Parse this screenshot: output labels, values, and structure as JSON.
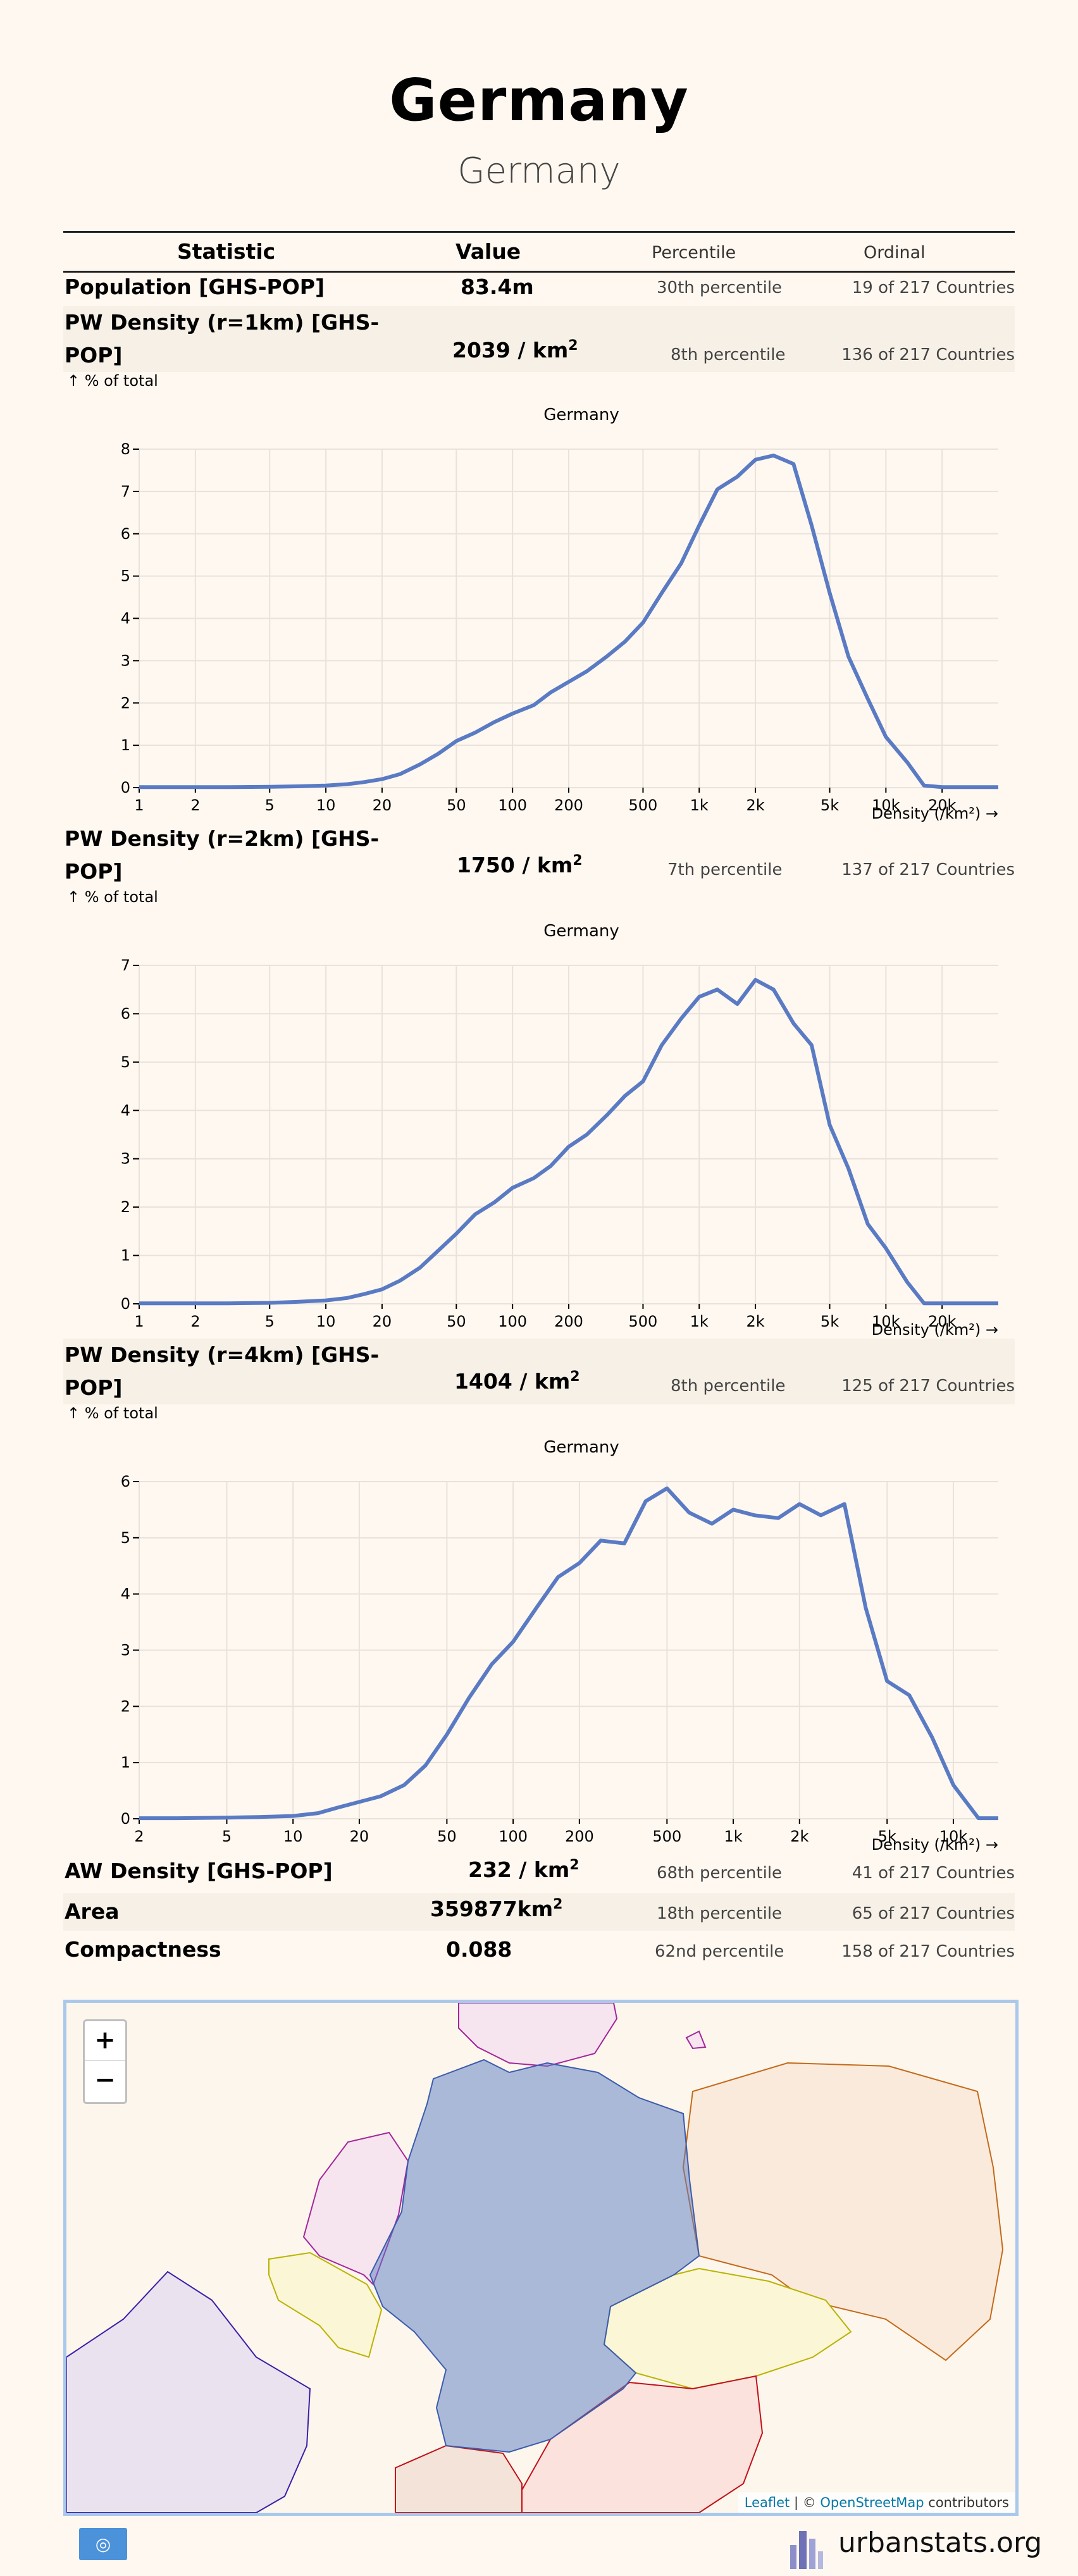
{
  "title": "Germany",
  "subtitle": "Germany",
  "table_header": {
    "statistic": "Statistic",
    "value": "Value",
    "percentile": "Percentile",
    "ordinal": "Ordinal"
  },
  "rows": {
    "population": {
      "name": "Population [GHS-POP]",
      "value": "83.4",
      "unit": "m",
      "percentile": "30th percentile",
      "ordinal": "19 of 217 Countries"
    },
    "pw1": {
      "name_line1": "PW Density (r=1km) [GHS-",
      "name_line2": "POP]",
      "value": "2039",
      "unit": "/ km",
      "unit_sup": "2",
      "percentile": "8th percentile",
      "ordinal": "136 of 217 Countries"
    },
    "pw2": {
      "name_line1": "PW Density (r=2km) [GHS-",
      "name_line2": "POP]",
      "value": "1750",
      "unit": "/ km",
      "unit_sup": "2",
      "percentile": "7th percentile",
      "ordinal": "137 of 217 Countries"
    },
    "pw4": {
      "name_line1": "PW Density (r=4km) [GHS-",
      "name_line2": "POP]",
      "value": "1404",
      "unit": "/ km",
      "unit_sup": "2",
      "percentile": "8th percentile",
      "ordinal": "125 of 217 Countries"
    },
    "aw": {
      "name": "AW Density [GHS-POP]",
      "value": "232",
      "unit": "/ km",
      "unit_sup": "2",
      "percentile": "68th percentile",
      "ordinal": "41 of 217 Countries"
    },
    "area": {
      "name": "Area",
      "value": "359877",
      "unit": "km",
      "unit_sup": "2",
      "percentile": "18th percentile",
      "ordinal": "65 of 217 Countries"
    },
    "compactness": {
      "name": "Compactness",
      "value": "0.088",
      "percentile": "62nd percentile",
      "ordinal": "158 of 217 Countries"
    }
  },
  "pct_total_label": "↑ % of total",
  "chart_data": [
    {
      "type": "line",
      "title": "Germany",
      "xlabel": "Density (/km²) →",
      "ylabel": "↑ % of total",
      "x_scale": "log",
      "x_ticks": [
        "1",
        "2",
        "5",
        "10",
        "20",
        "50",
        "100",
        "200",
        "500",
        "1k",
        "2k",
        "5k",
        "10k",
        "20k"
      ],
      "y_ticks": [
        "0",
        "1",
        "2",
        "3",
        "4",
        "5",
        "6",
        "7",
        "8"
      ],
      "xlim": [
        1,
        40000
      ],
      "ylim": [
        0,
        8
      ],
      "grid": true,
      "color": "#5a7bc4",
      "x": [
        1,
        2,
        3,
        5,
        7,
        10,
        13,
        16,
        20,
        25,
        32,
        40,
        50,
        63,
        80,
        100,
        130,
        160,
        200,
        250,
        320,
        400,
        500,
        630,
        800,
        1000,
        1250,
        1600,
        2000,
        2500,
        3200,
        4000,
        5000,
        6300,
        8000,
        10000,
        13000,
        16000,
        20000,
        25000,
        32000,
        40000
      ],
      "y": [
        0.01,
        0.01,
        0.01,
        0.02,
        0.03,
        0.05,
        0.08,
        0.13,
        0.2,
        0.32,
        0.55,
        0.8,
        1.1,
        1.3,
        1.55,
        1.75,
        1.95,
        2.25,
        2.5,
        2.75,
        3.1,
        3.45,
        3.9,
        4.6,
        5.3,
        6.2,
        7.05,
        7.35,
        7.75,
        7.85,
        7.65,
        6.2,
        4.6,
        3.1,
        2.1,
        1.2,
        0.6,
        0.05,
        0.01,
        0.01,
        0.01,
        0.01
      ]
    },
    {
      "type": "line",
      "title": "Germany",
      "xlabel": "Density (/km²) →",
      "ylabel": "↑ % of total",
      "x_scale": "log",
      "x_ticks": [
        "1",
        "2",
        "5",
        "10",
        "20",
        "50",
        "100",
        "200",
        "500",
        "1k",
        "2k",
        "5k",
        "10k",
        "20k"
      ],
      "y_ticks": [
        "0",
        "1",
        "2",
        "3",
        "4",
        "5",
        "6",
        "7"
      ],
      "xlim": [
        1,
        40000
      ],
      "ylim": [
        0,
        7
      ],
      "grid": true,
      "color": "#5a7bc4",
      "x": [
        1,
        2,
        3,
        5,
        7,
        10,
        13,
        16,
        20,
        25,
        32,
        40,
        50,
        63,
        80,
        100,
        130,
        160,
        200,
        250,
        320,
        400,
        500,
        630,
        800,
        1000,
        1250,
        1600,
        2000,
        2500,
        3200,
        4000,
        5000,
        6300,
        8000,
        10000,
        13000,
        16000,
        20000,
        25000,
        32000,
        40000
      ],
      "y": [
        0.01,
        0.01,
        0.01,
        0.02,
        0.04,
        0.07,
        0.12,
        0.2,
        0.3,
        0.48,
        0.75,
        1.1,
        1.45,
        1.85,
        2.1,
        2.4,
        2.6,
        2.85,
        3.25,
        3.5,
        3.9,
        4.3,
        4.6,
        5.35,
        5.9,
        6.35,
        6.5,
        6.2,
        6.7,
        6.5,
        5.8,
        5.35,
        3.7,
        2.8,
        1.65,
        1.15,
        0.45,
        0.01,
        0.01,
        0.01,
        0.01,
        0.01
      ]
    },
    {
      "type": "line",
      "title": "Germany",
      "xlabel": "Density (/km²) →",
      "ylabel": "↑ % of total",
      "x_scale": "log",
      "x_ticks": [
        "2",
        "5",
        "10",
        "20",
        "50",
        "100",
        "200",
        "500",
        "1k",
        "2k",
        "5k",
        "10k"
      ],
      "y_ticks": [
        "0",
        "1",
        "2",
        "3",
        "4",
        "5",
        "6"
      ],
      "xlim": [
        2,
        16000
      ],
      "ylim": [
        0,
        6
      ],
      "grid": true,
      "color": "#5a7bc4",
      "x": [
        2,
        3,
        5,
        7,
        10,
        13,
        16,
        20,
        25,
        32,
        40,
        50,
        63,
        80,
        100,
        130,
        160,
        200,
        250,
        320,
        400,
        500,
        630,
        800,
        1000,
        1250,
        1600,
        2000,
        2500,
        3200,
        4000,
        5000,
        6300,
        8000,
        10000,
        13000,
        16000
      ],
      "y": [
        0.01,
        0.01,
        0.02,
        0.03,
        0.05,
        0.1,
        0.2,
        0.3,
        0.4,
        0.6,
        0.95,
        1.5,
        2.15,
        2.75,
        3.15,
        3.8,
        4.3,
        4.55,
        4.95,
        4.9,
        5.65,
        5.88,
        5.45,
        5.25,
        5.5,
        5.4,
        5.35,
        5.6,
        5.4,
        5.6,
        3.75,
        2.45,
        2.2,
        1.45,
        0.6,
        0.01,
        0.01
      ]
    }
  ],
  "map": {
    "zoom_in": "+",
    "zoom_out": "−",
    "attribution_leaflet": "Leaflet",
    "attribution_sep": " | © ",
    "attribution_osm": "OpenStreetMap",
    "attribution_tail": " contributors",
    "highlight_color": "#5a7bc4"
  },
  "footer": {
    "un_flag_icon": "un-flag-icon",
    "brand": "urbanstats.org"
  }
}
